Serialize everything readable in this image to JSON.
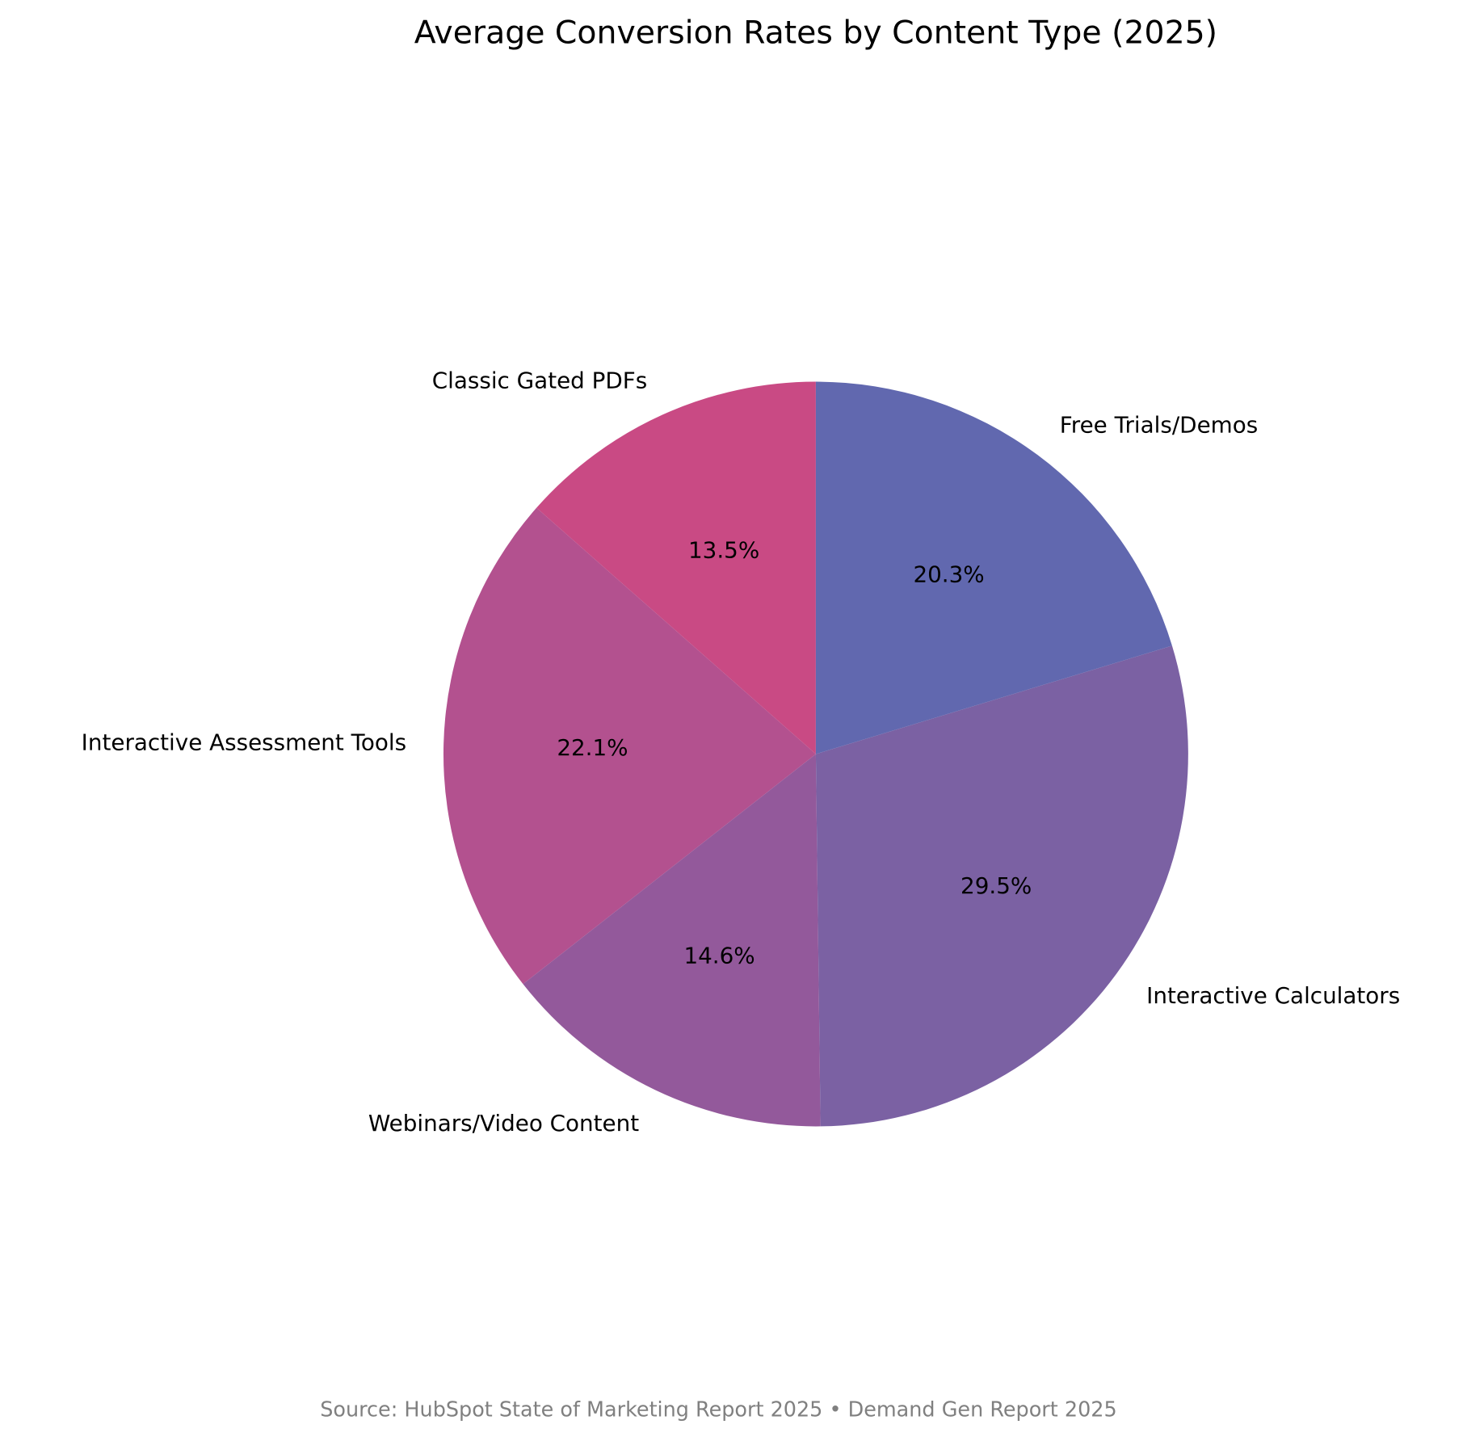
{
  "chart_data": {
    "type": "pie",
    "title": "Average Conversion Rates by Content Type (2025)",
    "categories": [
      "Classic Gated PDFs",
      "Interactive Assessment Tools",
      "Webinars/Video Content",
      "Interactive Calculators",
      "Free Trials/Demos"
    ],
    "values": [
      13.5,
      22.1,
      14.6,
      29.5,
      20.3
    ],
    "value_labels": [
      "13.5%",
      "22.1%",
      "14.6%",
      "29.5%",
      "20.3%"
    ],
    "colors": [
      "#C94A84",
      "#B3518F",
      "#93599B",
      "#7B61A3",
      "#6168AF"
    ],
    "start_angle": 90,
    "direction": "counterclockwise",
    "source": "Source: HubSpot State of Marketing Report 2025 • Demand Gen Report 2025"
  }
}
